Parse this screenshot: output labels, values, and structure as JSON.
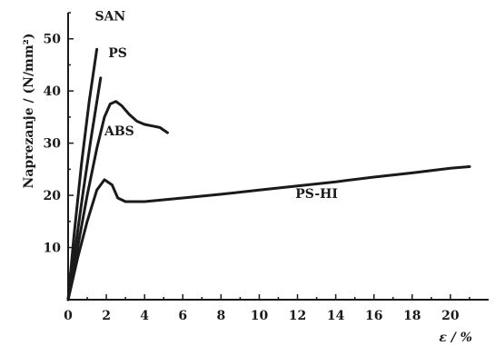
{
  "chart_data": {
    "type": "line",
    "title": "",
    "xlabel": "ε / %",
    "ylabel": "Naprezanje / (N/mm²)",
    "xlim": [
      0,
      22
    ],
    "ylim": [
      0,
      55
    ],
    "grid": false,
    "x_ticks": [
      0,
      2,
      4,
      6,
      8,
      10,
      12,
      14,
      16,
      18,
      20
    ],
    "y_ticks": [
      10,
      20,
      30,
      40,
      50
    ],
    "series": [
      {
        "name": "SAN",
        "label": "SAN",
        "x": [
          0,
          0.3,
          0.7,
          1.1,
          1.5
        ],
        "y": [
          0,
          12,
          26,
          38,
          48
        ]
      },
      {
        "name": "PS",
        "label": "PS",
        "x": [
          0,
          0.4,
          0.8,
          1.2,
          1.7
        ],
        "y": [
          0,
          10.5,
          21,
          31,
          42.5
        ]
      },
      {
        "name": "ABS",
        "label": "ABS",
        "x": [
          0,
          0.5,
          1.0,
          1.5,
          1.9,
          2.2,
          2.5,
          2.8,
          3.2,
          3.6,
          4.0,
          4.4,
          4.8,
          5.2
        ],
        "y": [
          0,
          10,
          20,
          29,
          35,
          37.5,
          38,
          37.2,
          35.5,
          34.2,
          33.6,
          33.3,
          33.0,
          32.0
        ]
      },
      {
        "name": "PS-HI",
        "label": "PS-HI",
        "x": [
          0,
          0.5,
          1.0,
          1.5,
          1.9,
          2.3,
          2.6,
          3.0,
          4.0,
          6.0,
          8.0,
          10.0,
          12.0,
          14.0,
          16.0,
          18.0,
          20.0,
          21.0
        ],
        "y": [
          0,
          8,
          15,
          21,
          23,
          22,
          19.5,
          18.8,
          18.8,
          19.5,
          20.2,
          21.0,
          21.8,
          22.6,
          23.5,
          24.3,
          25.2,
          25.5
        ]
      }
    ]
  }
}
